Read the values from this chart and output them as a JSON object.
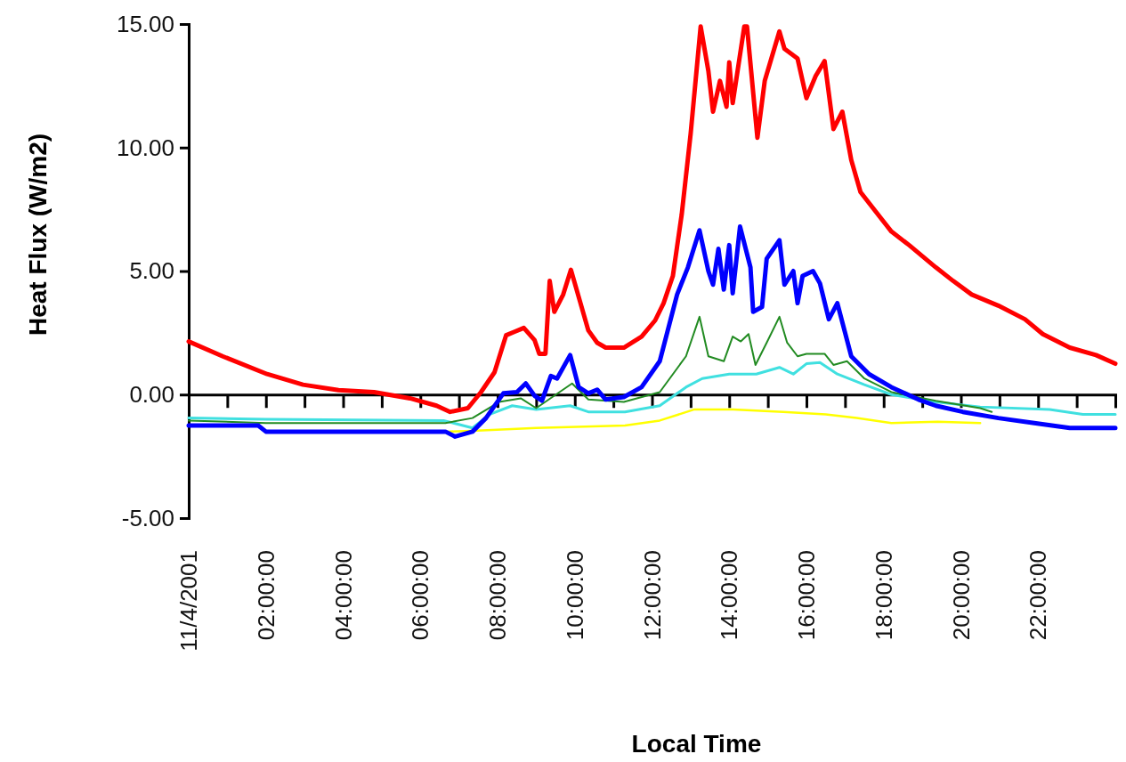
{
  "chart_data": {
    "type": "line",
    "xlabel": "Local Time",
    "ylabel": "Heat Flux (W/m2)",
    "xlim": [
      0,
      24
    ],
    "ylim": [
      -5,
      15
    ],
    "xticks": [
      {
        "value": 0,
        "label": "11/4/2001"
      },
      {
        "value": 1,
        "label": null
      },
      {
        "value": 2,
        "label": "02:00:00"
      },
      {
        "value": 3,
        "label": null
      },
      {
        "value": 4,
        "label": "04:00:00"
      },
      {
        "value": 5,
        "label": null
      },
      {
        "value": 6,
        "label": "06:00:00"
      },
      {
        "value": 7,
        "label": null
      },
      {
        "value": 8,
        "label": "08:00:00"
      },
      {
        "value": 9,
        "label": null
      },
      {
        "value": 10,
        "label": "10:00:00"
      },
      {
        "value": 11,
        "label": null
      },
      {
        "value": 12,
        "label": "12:00:00"
      },
      {
        "value": 13,
        "label": null
      },
      {
        "value": 14,
        "label": "14:00:00"
      },
      {
        "value": 15,
        "label": null
      },
      {
        "value": 16,
        "label": "16:00:00"
      },
      {
        "value": 17,
        "label": null
      },
      {
        "value": 18,
        "label": "18:00:00"
      },
      {
        "value": 19,
        "label": null
      },
      {
        "value": 20,
        "label": "20:00:00"
      },
      {
        "value": 21,
        "label": null
      },
      {
        "value": 22,
        "label": "22:00:00"
      },
      {
        "value": 23,
        "label": null
      },
      {
        "value": 24,
        "label": null
      }
    ],
    "yticks": [
      {
        "value": -5,
        "label": "-5.00"
      },
      {
        "value": 0,
        "label": "0.00"
      },
      {
        "value": 5,
        "label": "5.00"
      },
      {
        "value": 10,
        "label": "10.00"
      },
      {
        "value": 15,
        "label": "15.00"
      }
    ],
    "grid": false,
    "legend": false,
    "marker": "none",
    "line_style": "solid",
    "series": [
      {
        "color": "#ffff00",
        "x": [
          6.7,
          7.6,
          9,
          11.3,
          12.2,
          13.1,
          14.1,
          15.4,
          16.5,
          17.3,
          18.2,
          19.4,
          20.5
        ],
        "values": [
          -1.5,
          -1.45,
          -1.35,
          -1.25,
          -1.05,
          -0.6,
          -0.6,
          -0.7,
          -0.8,
          -0.95,
          -1.15,
          -1.1,
          -1.15
        ]
      },
      {
        "color": "#40e0e0",
        "x": [
          0,
          2,
          6.6,
          7.35,
          7.8,
          8.38,
          9,
          9.88,
          10.35,
          11.3,
          12.2,
          12.88,
          13.3,
          14,
          14.7,
          15.3,
          15.66,
          16,
          16.35,
          16.8,
          17.5,
          18.2,
          19.35,
          20.5,
          22.3,
          23.16,
          24
        ],
        "values": [
          -0.95,
          -1.0,
          -1.05,
          -1.35,
          -0.8,
          -0.45,
          -0.6,
          -0.45,
          -0.7,
          -0.7,
          -0.45,
          0.3,
          0.65,
          0.83,
          0.83,
          1.1,
          0.83,
          1.25,
          1.3,
          0.83,
          0.4,
          0,
          -0.3,
          -0.5,
          -0.6,
          -0.8,
          -0.8
        ]
      },
      {
        "color": "#228b22",
        "x": [
          0,
          2,
          6.65,
          7.35,
          8.04,
          8.6,
          9,
          9.93,
          10.35,
          11.27,
          12.2,
          12.88,
          13.23,
          13.46,
          13.86,
          14.09,
          14.3,
          14.5,
          14.68,
          14.97,
          15.3,
          15.5,
          15.77,
          16,
          16.47,
          16.7,
          17.05,
          17.5,
          18.2,
          19.35,
          20.5,
          20.8
        ],
        "values": [
          -1.05,
          -1.15,
          -1.15,
          -0.95,
          -0.3,
          -0.15,
          -0.55,
          0.45,
          -0.2,
          -0.3,
          0.1,
          1.55,
          3.15,
          1.55,
          1.35,
          2.35,
          2.15,
          2.45,
          1.2,
          2.1,
          3.15,
          2.1,
          1.55,
          1.65,
          1.65,
          1.2,
          1.35,
          0.65,
          0.1,
          -0.25,
          -0.55,
          -0.7
        ]
      },
      {
        "color": "#0000ff",
        "x": [
          0,
          1.8,
          2,
          6.65,
          6.9,
          7.35,
          7.7,
          8.15,
          8.5,
          8.73,
          8.96,
          9.15,
          9.38,
          9.54,
          9.88,
          10.1,
          10.35,
          10.58,
          10.8,
          11.27,
          11.73,
          12.2,
          12.65,
          12.93,
          13.23,
          13.46,
          13.58,
          13.72,
          13.86,
          14,
          14.09,
          14.28,
          14.55,
          14.62,
          14.85,
          14.97,
          15.3,
          15.43,
          15.66,
          15.77,
          15.9,
          16.17,
          16.35,
          16.58,
          16.8,
          17.16,
          17.62,
          18.2,
          18.9,
          19.35,
          20.05,
          20.97,
          21.9,
          22.82,
          24
        ],
        "values": [
          -1.25,
          -1.25,
          -1.5,
          -1.5,
          -1.7,
          -1.5,
          -0.95,
          0.05,
          0.1,
          0.45,
          -0.05,
          -0.25,
          0.75,
          0.65,
          1.6,
          0.3,
          0.05,
          0.2,
          -0.2,
          -0.1,
          0.3,
          1.35,
          4.05,
          5.15,
          6.65,
          5.0,
          4.45,
          5.9,
          4.25,
          6.05,
          4.1,
          6.8,
          5.15,
          3.35,
          3.55,
          5.5,
          6.25,
          4.45,
          5.0,
          3.7,
          4.8,
          5.0,
          4.5,
          3.05,
          3.7,
          1.55,
          0.83,
          0.3,
          -0.2,
          -0.45,
          -0.7,
          -0.95,
          -1.15,
          -1.35,
          -1.35
        ]
      },
      {
        "color": "#ff0000",
        "x": [
          0,
          0.88,
          2.03,
          2.96,
          3.88,
          4.8,
          5.73,
          6.42,
          6.77,
          7.23,
          7.57,
          7.92,
          8.22,
          8.45,
          8.68,
          8.96,
          9.08,
          9.24,
          9.35,
          9.47,
          9.7,
          9.9,
          10.35,
          10.58,
          10.8,
          11.27,
          11.73,
          12.08,
          12.3,
          12.54,
          12.77,
          13.0,
          13.26,
          13.46,
          13.58,
          13.76,
          13.93,
          14.0,
          14.09,
          14.39,
          14.46,
          14.73,
          14.92,
          15.3,
          15.43,
          15.77,
          16.0,
          16.24,
          16.47,
          16.7,
          16.93,
          17.16,
          17.4,
          17.85,
          18.2,
          18.66,
          19.35,
          19.8,
          20.28,
          20.97,
          21.66,
          22.12,
          22.82,
          23.5,
          24
        ],
        "values": [
          2.15,
          1.55,
          0.83,
          0.4,
          0.18,
          0.1,
          -0.15,
          -0.45,
          -0.7,
          -0.55,
          0.1,
          0.9,
          2.4,
          2.55,
          2.7,
          2.2,
          1.65,
          1.65,
          4.6,
          3.35,
          4.05,
          5.05,
          2.6,
          2.1,
          1.9,
          1.9,
          2.35,
          3.0,
          3.7,
          4.8,
          7.3,
          10.55,
          14.9,
          13.1,
          11.45,
          12.7,
          11.65,
          13.45,
          11.8,
          14.9,
          14.9,
          10.4,
          12.7,
          14.7,
          14.0,
          13.6,
          12.0,
          12.9,
          13.5,
          10.75,
          11.45,
          9.5,
          8.2,
          7.3,
          6.6,
          6.05,
          5.15,
          4.6,
          4.05,
          3.6,
          3.05,
          2.45,
          1.9,
          1.6,
          1.25
        ]
      }
    ]
  }
}
